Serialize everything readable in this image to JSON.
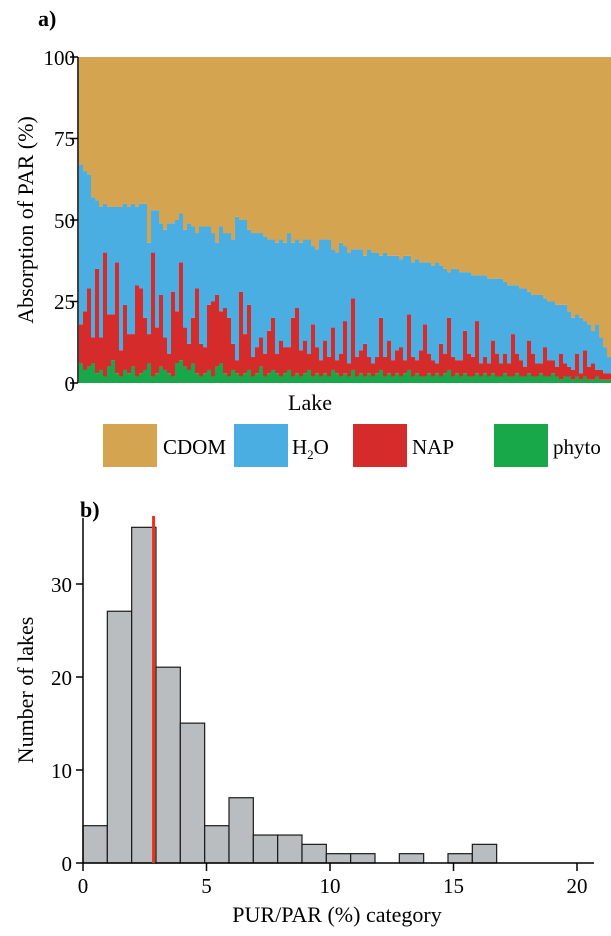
{
  "panel_a": {
    "label": "a)",
    "ylabel": "Absorption of PAR (%)",
    "xlabel": "Lake",
    "ytick_labels": [
      "0",
      "25",
      "50",
      "75",
      "100"
    ],
    "legend": [
      {
        "label": "CDOM",
        "color": "#D4A451"
      },
      {
        "label": "H",
        "sub": "2",
        "label_tail": "O",
        "color": "#4AAEE3"
      },
      {
        "label": "NAP",
        "color": "#D62B2B"
      },
      {
        "label": "phyto",
        "color": "#18A84A"
      }
    ]
  },
  "panel_b": {
    "label": "b)",
    "ylabel": "Number of lakes",
    "xlabel": "PUR/PAR (%) category",
    "ytick_labels": [
      "0",
      "10",
      "20",
      "30"
    ],
    "xtick_labels": [
      "0",
      "5",
      "10",
      "15",
      "20"
    ]
  },
  "chart_data": [
    {
      "type": "bar",
      "stacked": true,
      "title": "",
      "xlabel": "Lake",
      "ylabel": "Absorption of PAR (%)",
      "ylim": [
        0,
        100
      ],
      "n_lakes": 133,
      "series": [
        {
          "name": "phyto",
          "color": "#18A84A",
          "values": [
            6,
            4,
            5,
            6,
            3,
            4,
            2,
            5,
            7,
            3,
            2,
            4,
            3,
            5,
            2,
            3,
            4,
            6,
            2,
            3,
            5,
            4,
            3,
            2,
            6,
            7,
            5,
            4,
            6,
            3,
            2,
            3,
            4,
            2,
            5,
            6,
            3,
            2,
            4,
            3,
            2,
            3,
            4,
            2,
            3,
            5,
            2,
            3,
            4,
            3,
            2,
            3,
            4,
            2,
            3,
            2,
            3,
            4,
            2,
            3,
            2,
            3,
            2,
            4,
            3,
            2,
            3,
            2,
            4,
            2,
            3,
            2,
            3,
            2,
            3,
            4,
            2,
            3,
            2,
            3,
            2,
            3,
            4,
            2,
            3,
            2,
            2,
            3,
            2,
            3,
            2,
            3,
            4,
            2,
            3,
            2,
            3,
            2,
            2,
            3,
            2,
            3,
            2,
            3,
            2,
            2,
            3,
            2,
            2,
            3,
            2,
            2,
            3,
            2,
            2,
            3,
            2,
            2,
            3,
            2,
            1,
            2,
            2,
            1,
            2,
            1,
            2,
            1,
            1,
            2,
            1,
            1,
            1
          ]
        },
        {
          "name": "NAP",
          "color": "#D62B2B",
          "values": [
            12,
            18,
            24,
            8,
            32,
            10,
            38,
            16,
            14,
            34,
            8,
            20,
            12,
            10,
            28,
            26,
            16,
            9,
            38,
            14,
            22,
            10,
            6,
            26,
            16,
            30,
            12,
            8,
            14,
            26,
            10,
            8,
            20,
            23,
            22,
            16,
            20,
            18,
            8,
            4,
            26,
            12,
            20,
            6,
            8,
            9,
            7,
            13,
            16,
            6,
            11,
            8,
            7,
            18,
            20,
            8,
            10,
            5,
            16,
            8,
            5,
            10,
            6,
            13,
            4,
            7,
            16,
            4,
            22,
            6,
            7,
            10,
            5,
            4,
            5,
            16,
            6,
            10,
            5,
            7,
            9,
            4,
            17,
            6,
            4,
            8,
            16,
            6,
            5,
            3,
            10,
            6,
            16,
            6,
            4,
            5,
            13,
            7,
            6,
            16,
            4,
            5,
            4,
            10,
            7,
            4,
            6,
            4,
            13,
            6,
            5,
            3,
            10,
            7,
            4,
            3,
            9,
            5,
            4,
            3,
            8,
            4,
            3,
            3,
            7,
            2,
            8,
            4,
            5,
            2,
            3,
            2,
            2
          ]
        },
        {
          "name": "H₂O",
          "color": "#4AAEE3",
          "values": [
            49,
            43,
            35,
            43,
            21,
            40,
            15,
            33,
            33,
            17,
            44,
            31,
            39,
            40,
            24,
            26,
            35,
            28,
            13,
            36,
            22,
            33,
            40,
            21,
            28,
            15,
            30,
            37,
            28,
            17,
            36,
            37,
            24,
            21,
            16,
            26,
            23,
            26,
            32,
            44,
            22,
            35,
            23,
            38,
            35,
            32,
            36,
            28,
            24,
            34,
            31,
            32,
            35,
            23,
            21,
            33,
            31,
            35,
            24,
            30,
            37,
            31,
            36,
            24,
            33,
            34,
            23,
            34,
            15,
            33,
            31,
            27,
            33,
            34,
            32,
            19,
            32,
            26,
            32,
            29,
            27,
            32,
            18,
            29,
            31,
            27,
            19,
            28,
            29,
            31,
            24,
            26,
            14,
            27,
            28,
            27,
            18,
            25,
            25,
            14,
            27,
            25,
            26,
            19,
            23,
            26,
            22,
            24,
            15,
            21,
            22,
            24,
            15,
            18,
            21,
            21,
            15,
            18,
            18,
            19,
            15,
            18,
            17,
            16,
            12,
            17,
            9,
            13,
            10,
            14,
            10,
            8,
            5
          ]
        },
        {
          "name": "CDOM",
          "color": "#D4A451",
          "values": [
            33,
            35,
            36,
            43,
            44,
            46,
            45,
            46,
            46,
            46,
            46,
            45,
            46,
            45,
            46,
            45,
            45,
            57,
            47,
            47,
            51,
            53,
            51,
            51,
            50,
            48,
            53,
            51,
            52,
            54,
            52,
            52,
            52,
            54,
            57,
            52,
            54,
            54,
            56,
            49,
            50,
            50,
            53,
            54,
            54,
            54,
            55,
            56,
            56,
            57,
            56,
            57,
            54,
            57,
            56,
            57,
            56,
            56,
            58,
            59,
            56,
            56,
            56,
            59,
            60,
            57,
            58,
            60,
            59,
            59,
            59,
            61,
            59,
            60,
            60,
            61,
            60,
            61,
            61,
            61,
            62,
            61,
            61,
            63,
            62,
            63,
            63,
            63,
            64,
            63,
            64,
            65,
            66,
            65,
            65,
            66,
            66,
            66,
            67,
            67,
            67,
            67,
            68,
            68,
            68,
            68,
            69,
            70,
            70,
            70,
            71,
            71,
            72,
            73,
            73,
            73,
            74,
            75,
            75,
            76,
            76,
            76,
            78,
            80,
            79,
            80,
            81,
            82,
            84,
            82,
            86,
            89,
            92
          ]
        }
      ]
    },
    {
      "type": "bar",
      "subtype": "histogram",
      "title": "",
      "xlabel": "PUR/PAR (%) category",
      "ylabel": "Number of lakes",
      "xlim": [
        0,
        21
      ],
      "ylim": [
        0,
        37
      ],
      "bin_edges": [
        0,
        1,
        2,
        3,
        4,
        5,
        6,
        7,
        8,
        9,
        10,
        11,
        12,
        13,
        14,
        15,
        16,
        17,
        18,
        19,
        20,
        21
      ],
      "values": [
        4,
        27,
        36,
        21,
        15,
        4,
        7,
        3,
        3,
        2,
        1,
        1,
        0,
        1,
        0,
        1,
        2,
        0,
        0,
        0,
        0
      ],
      "reference_line": {
        "x": 2.9,
        "color": "#E8341C"
      }
    }
  ]
}
